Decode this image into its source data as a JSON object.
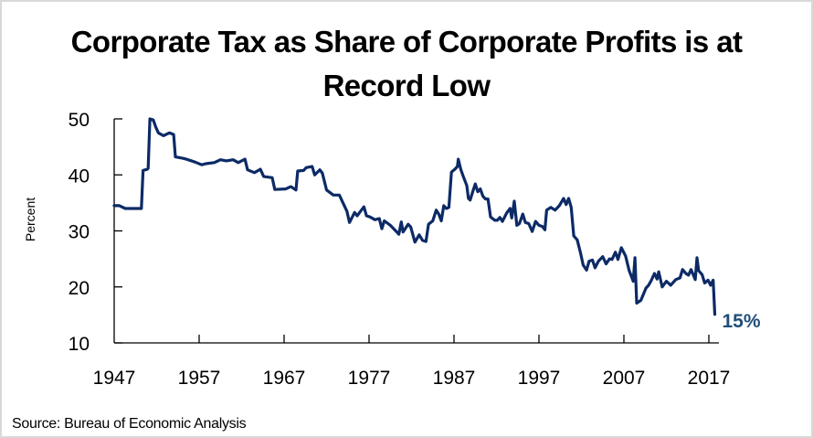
{
  "chart_data": {
    "type": "line",
    "title": "Corporate Tax as Share of Corporate Profits is at Record Low",
    "title_lines": [
      "Corporate Tax as Share of Corporate Profits is at",
      "Record Low"
    ],
    "xlabel": "",
    "ylabel": "Percent",
    "ylim": [
      10,
      50
    ],
    "xlim": [
      1947,
      2018.1
    ],
    "yticks": [
      50,
      40,
      30,
      20,
      10
    ],
    "xticks": [
      1947,
      1957,
      1967,
      1977,
      1987,
      1997,
      2007,
      2017
    ],
    "ytick_labels": [
      "50",
      "40",
      "30",
      "20",
      "10"
    ],
    "xtick_labels": [
      "1947",
      "1957",
      "1967",
      "1977",
      "1987",
      "1997",
      "2007",
      "2017"
    ],
    "grid": false,
    "legend": "none",
    "source": "Source: Bureau of Economic Analysis",
    "annotation": {
      "text": "15%",
      "x": 2017.7,
      "y": 15.1
    },
    "colors": {
      "line": "#0c2a66",
      "annotation": "#1f4e79",
      "axis": "#000000"
    },
    "series": [
      {
        "name": "Corporate tax share of corporate profits",
        "x": [
          1947.0,
          1947.6,
          1948.3,
          1950.0,
          1950.2,
          1950.4,
          1950.9,
          1951.0,
          1951.2,
          1951.6,
          1951.9,
          1952.2,
          1952.8,
          1953.5,
          1954.0,
          1954.2,
          1955.0,
          1955.5,
          1956.5,
          1957.3,
          1957.8,
          1958.8,
          1959.5,
          1960.2,
          1961.0,
          1961.6,
          1962.4,
          1962.7,
          1963.5,
          1964.2,
          1964.6,
          1965.6,
          1965.9,
          1967.2,
          1967.8,
          1968.4,
          1968.6,
          1969.3,
          1969.6,
          1970.3,
          1970.6,
          1971.2,
          1971.5,
          1972.0,
          1972.8,
          1973.5,
          1973.9,
          1974.4,
          1974.7,
          1975.3,
          1975.6,
          1976.1,
          1976.4,
          1976.7,
          1977.1,
          1977.7,
          1978.2,
          1978.5,
          1978.8,
          1979.5,
          1980.2,
          1980.5,
          1980.8,
          1981.0,
          1981.6,
          1981.9,
          1982.4,
          1982.9,
          1983.3,
          1983.7,
          1984.0,
          1984.5,
          1984.9,
          1985.2,
          1985.5,
          1985.8,
          1986.1,
          1986.4,
          1986.7,
          1987.1,
          1987.4,
          1987.5,
          1987.8,
          1988.1,
          1988.5,
          1988.7,
          1988.9,
          1989.2,
          1989.5,
          1989.8,
          1990.1,
          1990.4,
          1990.7,
          1991.0,
          1991.3,
          1991.8,
          1992.1,
          1992.4,
          1992.7,
          1993.2,
          1993.6,
          1993.8,
          1994.1,
          1994.4,
          1994.7,
          1995.1,
          1995.4,
          1995.8,
          1996.2,
          1996.6,
          1997.0,
          1997.4,
          1997.7,
          1997.9,
          1998.4,
          1998.9,
          1999.4,
          1999.9,
          2000.2,
          2000.5,
          2000.8,
          2001.1,
          2001.5,
          2001.9,
          2002.2,
          2002.6,
          2002.9,
          2003.3,
          2003.6,
          2004.0,
          2004.5,
          2004.9,
          2005.3,
          2005.6,
          2006.0,
          2006.3,
          2006.7,
          2007.2,
          2007.6,
          2008.1,
          2008.3,
          2008.5,
          2009.0,
          2009.6,
          2009.9,
          2010.2,
          2010.6,
          2010.9,
          2011.1,
          2011.5,
          2012.0,
          2012.5,
          2013.1,
          2013.6,
          2013.9,
          2014.3,
          2014.6,
          2014.9,
          2015.4,
          2015.6,
          2015.8,
          2016.2,
          2016.5,
          2016.9,
          2017.2,
          2017.5,
          2017.7
        ],
        "values": [
          34.5,
          34.5,
          34.0,
          34.0,
          34.0,
          40.8,
          41.0,
          41.2,
          50.0,
          49.8,
          48.5,
          47.5,
          47.0,
          47.5,
          47.2,
          43.2,
          43.0,
          42.8,
          42.3,
          41.8,
          42.0,
          42.2,
          42.7,
          42.5,
          42.7,
          42.2,
          42.8,
          40.9,
          40.4,
          41.0,
          39.7,
          39.5,
          37.4,
          37.5,
          37.9,
          37.3,
          40.7,
          40.8,
          41.3,
          41.5,
          40.0,
          40.9,
          40.3,
          37.3,
          36.4,
          36.4,
          35.1,
          33.5,
          31.5,
          33.3,
          32.7,
          33.7,
          34.3,
          32.7,
          32.5,
          32.0,
          32.2,
          30.4,
          31.8,
          31.0,
          29.9,
          29.4,
          31.6,
          29.8,
          31.2,
          30.7,
          28.0,
          29.3,
          28.3,
          28.1,
          31.2,
          31.8,
          33.7,
          33.0,
          31.8,
          34.5,
          34.0,
          34.2,
          40.5,
          41.0,
          41.5,
          42.8,
          41.0,
          39.7,
          38.1,
          35.8,
          35.5,
          37.0,
          38.4,
          37.0,
          37.5,
          36.2,
          35.7,
          35.7,
          32.5,
          31.9,
          31.9,
          32.4,
          31.7,
          33.2,
          34.0,
          32.3,
          35.3,
          31.0,
          31.3,
          33.0,
          31.5,
          31.3,
          29.9,
          31.7,
          31.0,
          30.8,
          30.2,
          33.7,
          34.2,
          33.7,
          34.5,
          35.8,
          34.7,
          35.8,
          34.2,
          29.1,
          28.4,
          26.0,
          23.9,
          23.0,
          24.6,
          24.8,
          23.4,
          24.6,
          25.4,
          24.1,
          25.0,
          24.9,
          26.2,
          24.9,
          27.0,
          25.5,
          23.0,
          21.0,
          25.2,
          17.1,
          17.6,
          19.8,
          20.3,
          21.1,
          22.4,
          21.4,
          22.7,
          20.0,
          21.0,
          20.3,
          21.3,
          21.6,
          23.1,
          22.4,
          22.1,
          23.1,
          21.3,
          25.2,
          22.9,
          22.2,
          20.7,
          21.2,
          20.3,
          21.2,
          15.1
        ]
      }
    ]
  }
}
